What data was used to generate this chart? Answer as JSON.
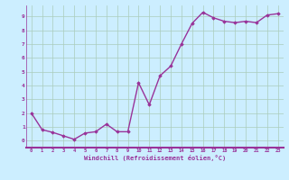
{
  "x": [
    0,
    1,
    2,
    3,
    4,
    5,
    6,
    7,
    8,
    9,
    10,
    11,
    12,
    13,
    14,
    15,
    16,
    17,
    18,
    19,
    20,
    21,
    22,
    23
  ],
  "y": [
    2.0,
    0.8,
    0.6,
    0.35,
    0.1,
    0.55,
    0.65,
    1.2,
    0.65,
    0.65,
    4.2,
    2.6,
    4.7,
    5.4,
    7.0,
    8.5,
    9.3,
    8.9,
    8.65,
    8.55,
    8.65,
    8.55,
    9.1,
    9.2
  ],
  "line_color": "#993399",
  "marker": "D",
  "marker_size": 1.8,
  "bg_color": "#cceeff",
  "grid_color": "#aaccbb",
  "xlabel": "Windchill (Refroidissement éolien,°C)",
  "xlabel_color": "#993399",
  "tick_color": "#993399",
  "xlim": [
    -0.5,
    23.5
  ],
  "ylim": [
    -0.5,
    9.8
  ],
  "yticks": [
    0,
    1,
    2,
    3,
    4,
    5,
    6,
    7,
    8,
    9
  ],
  "xticks": [
    0,
    1,
    2,
    3,
    4,
    5,
    6,
    7,
    8,
    9,
    10,
    11,
    12,
    13,
    14,
    15,
    16,
    17,
    18,
    19,
    20,
    21,
    22,
    23
  ],
  "linewidth": 1.0
}
